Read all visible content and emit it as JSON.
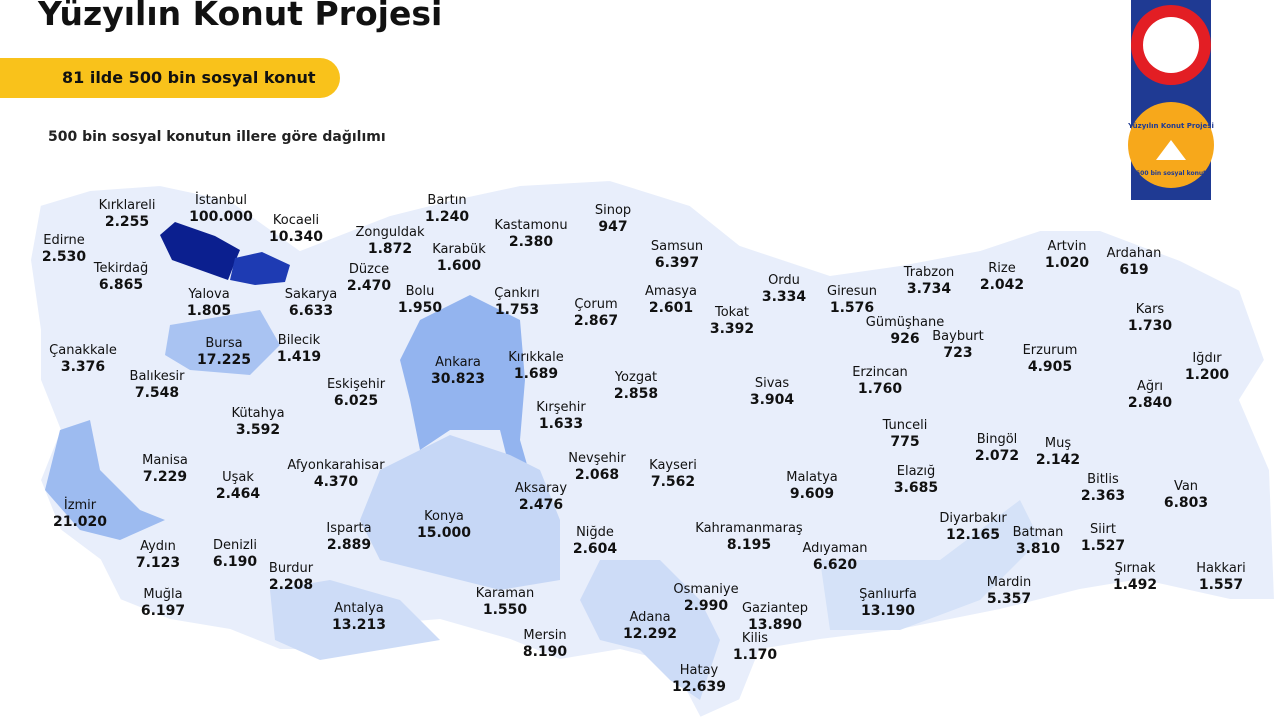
{
  "header": {
    "title": "Yüzyılın Konut Projesi",
    "badge": "81 ilde 500 bin sosyal konut",
    "subtitle": "500 bin sosyal konutun illere göre dağılımı"
  },
  "logo": {
    "title": "Yüzyılın Konut Projesi",
    "subtitle": "500 bin sosyal konut"
  },
  "provinces": [
    {
      "name": "Kırklareli",
      "value": "2.255"
    },
    {
      "name": "İstanbul",
      "value": "100.000"
    },
    {
      "name": "Kocaeli",
      "value": "10.340"
    },
    {
      "name": "Edirne",
      "value": "2.530"
    },
    {
      "name": "Tekirdağ",
      "value": "6.865"
    },
    {
      "name": "Yalova",
      "value": "1.805"
    },
    {
      "name": "Sakarya",
      "value": "6.633"
    },
    {
      "name": "Bartın",
      "value": "1.240"
    },
    {
      "name": "Kastamonu",
      "value": "2.380"
    },
    {
      "name": "Sinop",
      "value": "947"
    },
    {
      "name": "Zonguldak",
      "value": "1.872"
    },
    {
      "name": "Karabük",
      "value": "1.600"
    },
    {
      "name": "Düzce",
      "value": "2.470"
    },
    {
      "name": "Samsun",
      "value": "6.397"
    },
    {
      "name": "Bolu",
      "value": "1.950"
    },
    {
      "name": "Çankırı",
      "value": "1.753"
    },
    {
      "name": "Çorum",
      "value": "2.867"
    },
    {
      "name": "Amasya",
      "value": "2.601"
    },
    {
      "name": "Tokat",
      "value": "3.392"
    },
    {
      "name": "Ordu",
      "value": "3.334"
    },
    {
      "name": "Giresun",
      "value": "1.576"
    },
    {
      "name": "Trabzon",
      "value": "3.734"
    },
    {
      "name": "Rize",
      "value": "2.042"
    },
    {
      "name": "Artvin",
      "value": "1.020"
    },
    {
      "name": "Ardahan",
      "value": "619"
    },
    {
      "name": "Kars",
      "value": "1.730"
    },
    {
      "name": "Gümüşhane",
      "value": "926"
    },
    {
      "name": "Bayburt",
      "value": "723"
    },
    {
      "name": "Erzurum",
      "value": "4.905"
    },
    {
      "name": "Iğdır",
      "value": "1.200"
    },
    {
      "name": "Ağrı",
      "value": "2.840"
    },
    {
      "name": "Çanakkale",
      "value": "3.376"
    },
    {
      "name": "Bursa",
      "value": "17.225"
    },
    {
      "name": "Bilecik",
      "value": "1.419"
    },
    {
      "name": "Balıkesir",
      "value": "7.548"
    },
    {
      "name": "Eskişehir",
      "value": "6.025"
    },
    {
      "name": "Ankara",
      "value": "30.823"
    },
    {
      "name": "Kırıkkale",
      "value": "1.689"
    },
    {
      "name": "Yozgat",
      "value": "2.858"
    },
    {
      "name": "Sivas",
      "value": "3.904"
    },
    {
      "name": "Erzincan",
      "value": "1.760"
    },
    {
      "name": "Kırşehir",
      "value": "1.633"
    },
    {
      "name": "Kütahya",
      "value": "3.592"
    },
    {
      "name": "Tunceli",
      "value": "775"
    },
    {
      "name": "Bingöl",
      "value": "2.072"
    },
    {
      "name": "Muş",
      "value": "2.142"
    },
    {
      "name": "Manisa",
      "value": "7.229"
    },
    {
      "name": "Uşak",
      "value": "2.464"
    },
    {
      "name": "Afyonkarahisar",
      "value": "4.370"
    },
    {
      "name": "Nevşehir",
      "value": "2.068"
    },
    {
      "name": "Kayseri",
      "value": "7.562"
    },
    {
      "name": "Malatya",
      "value": "9.609"
    },
    {
      "name": "Elazığ",
      "value": "3.685"
    },
    {
      "name": "Bitlis",
      "value": "2.363"
    },
    {
      "name": "Van",
      "value": "6.803"
    },
    {
      "name": "Aksaray",
      "value": "2.476"
    },
    {
      "name": "İzmir",
      "value": "21.020"
    },
    {
      "name": "Konya",
      "value": "15.000"
    },
    {
      "name": "Diyarbakır",
      "value": "12.165"
    },
    {
      "name": "Isparta",
      "value": "2.889"
    },
    {
      "name": "Kahramanmaraş",
      "value": "8.195"
    },
    {
      "name": "Batman",
      "value": "3.810"
    },
    {
      "name": "Siirt",
      "value": "1.527"
    },
    {
      "name": "Niğde",
      "value": "2.604"
    },
    {
      "name": "Aydın",
      "value": "7.123"
    },
    {
      "name": "Denizli",
      "value": "6.190"
    },
    {
      "name": "Adıyaman",
      "value": "6.620"
    },
    {
      "name": "Mardin",
      "value": "5.357"
    },
    {
      "name": "Şırnak",
      "value": "1.492"
    },
    {
      "name": "Hakkari",
      "value": "1.557"
    },
    {
      "name": "Burdur",
      "value": "2.208"
    },
    {
      "name": "Muğla",
      "value": "6.197"
    },
    {
      "name": "Şanlıurfa",
      "value": "13.190"
    },
    {
      "name": "Osmaniye",
      "value": "2.990"
    },
    {
      "name": "Karaman",
      "value": "1.550"
    },
    {
      "name": "Antalya",
      "value": "13.213"
    },
    {
      "name": "Gaziantep",
      "value": "13.890"
    },
    {
      "name": "Adana",
      "value": "12.292"
    },
    {
      "name": "Mersin",
      "value": "8.190"
    },
    {
      "name": "Kilis",
      "value": "1.170"
    },
    {
      "name": "Hatay",
      "value": "12.639"
    }
  ]
}
